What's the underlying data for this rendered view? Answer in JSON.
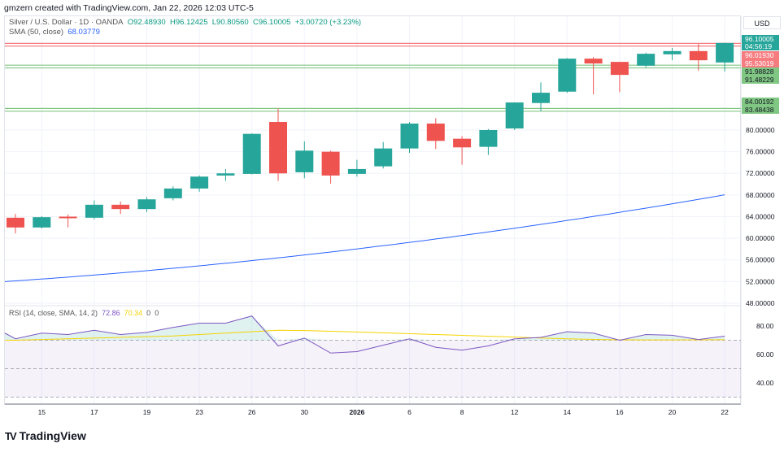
{
  "header": {
    "created_line": "gmzern created with TradingView.com, Jan 22, 2026 12:03 UTC-5",
    "symbol": "Silver / U.S. Dollar · 1D · OANDA",
    "open": "O92.48930",
    "high": "H96.12425",
    "low": "L90.80560",
    "close": "C96.10005",
    "change": "+3.00720 (+3.23%)",
    "sma_label": "SMA (50, close)",
    "sma_value": "68.03779",
    "currency": "USD"
  },
  "rsi_legend": {
    "label": "RSI (14, close, SMA, 14, 2)",
    "rsi": "72.86",
    "sma": "70.34",
    "extra1": "0",
    "extra2": "0"
  },
  "price_tags": [
    {
      "value": "96.10005",
      "sub": "04:56:19",
      "color": "#26a69a"
    },
    {
      "value": "96.01930",
      "color": "#f77c80"
    },
    {
      "value": "95.53019",
      "color": "#f77c80"
    },
    {
      "value": "91.98828",
      "color": "#81c784"
    },
    {
      "value": "91.48229",
      "color": "#81c784"
    },
    {
      "value": "84.00192",
      "color": "#81c784"
    },
    {
      "value": "83.48438",
      "color": "#81c784"
    }
  ],
  "brand": "TradingView",
  "colors": {
    "up": "#26a69a",
    "down": "#ef5350",
    "sma": "#2962ff",
    "rsi": "#7e57c2",
    "rsi_sma": "#f5d300"
  },
  "chart_data": {
    "type": "candlestick",
    "title": "Silver / U.S. Dollar · 1D · OANDA",
    "x_ticks": [
      "15",
      "17",
      "19",
      "23",
      "26",
      "30",
      "2026",
      "6",
      "8",
      "12",
      "14",
      "16",
      "20",
      "22"
    ],
    "x_tick_index": [
      1,
      3,
      5,
      7,
      9,
      11,
      13,
      15,
      17,
      19,
      21,
      23,
      25,
      27
    ],
    "y_ticks": [
      "80.00000",
      "76.00000",
      "72.00000",
      "68.00000",
      "64.00000",
      "60.00000",
      "56.00000",
      "52.00000",
      "48.00000"
    ],
    "ylim": [
      47.5,
      97
    ],
    "candles": [
      [
        63.8,
        64.5,
        60.9,
        62.0
      ],
      [
        62.0,
        64.1,
        61.8,
        63.9
      ],
      [
        64.0,
        64.4,
        62.0,
        63.7
      ],
      [
        63.8,
        67.0,
        63.5,
        66.2
      ],
      [
        66.2,
        66.8,
        64.5,
        65.4
      ],
      [
        65.4,
        67.6,
        64.8,
        67.2
      ],
      [
        67.4,
        69.6,
        67.0,
        69.2
      ],
      [
        69.2,
        71.6,
        68.6,
        71.4
      ],
      [
        71.6,
        72.8,
        70.6,
        72.0
      ],
      [
        71.9,
        79.4,
        71.8,
        79.3
      ],
      [
        81.5,
        84.0,
        70.6,
        72.0
      ],
      [
        72.2,
        77.9,
        71.1,
        76.2
      ],
      [
        76.0,
        76.2,
        70.1,
        71.6
      ],
      [
        71.9,
        74.5,
        71.4,
        72.8
      ],
      [
        73.3,
        77.8,
        72.9,
        76.6
      ],
      [
        76.6,
        81.5,
        75.8,
        81.2
      ],
      [
        81.2,
        82.2,
        76.5,
        78.0
      ],
      [
        78.4,
        78.9,
        73.6,
        76.8
      ],
      [
        76.9,
        80.2,
        75.4,
        80.0
      ],
      [
        80.3,
        85.1,
        80.0,
        85.1
      ],
      [
        85.0,
        88.8,
        83.5,
        86.9
      ],
      [
        87.1,
        93.3,
        86.9,
        93.2
      ],
      [
        93.2,
        93.5,
        86.6,
        92.3
      ],
      [
        92.6,
        92.6,
        87.0,
        90.2
      ],
      [
        91.9,
        94.3,
        91.6,
        94.1
      ],
      [
        94.0,
        95.2,
        92.9,
        94.6
      ],
      [
        94.6,
        95.9,
        91.0,
        92.9
      ],
      [
        92.4893,
        96.12425,
        90.8056,
        96.10005
      ]
    ],
    "sma50": {
      "start": 52.0,
      "end": 68.03779
    },
    "hlines": [
      {
        "value": 96.0193,
        "color": "#f77c80"
      },
      {
        "value": 95.53019,
        "color": "#f77c80"
      },
      {
        "value": 91.98828,
        "color": "#81c784"
      },
      {
        "value": 91.48229,
        "color": "#81c784"
      },
      {
        "value": 84.00192,
        "color": "#81c784"
      },
      {
        "value": 83.48438,
        "color": "#81c784"
      }
    ],
    "rsi": {
      "y_ticks": [
        "80.00",
        "60.00",
        "40.00"
      ],
      "levels": [
        70,
        50,
        30
      ],
      "values": [
        71,
        75,
        74,
        77,
        74,
        75.5,
        79,
        82,
        82,
        87,
        66,
        71.5,
        61,
        62,
        66.5,
        71,
        65,
        63,
        66,
        71,
        72,
        76,
        75,
        70,
        74,
        73.5,
        70.5,
        72.86
      ],
      "sma": [
        70,
        70.5,
        71,
        71.5,
        72,
        72.5,
        73,
        74,
        75,
        76,
        77,
        76.8,
        76.3,
        75.8,
        75.2,
        74.6,
        74,
        73.4,
        72.8,
        72.2,
        71.6,
        71,
        70.6,
        70.3,
        70.2,
        70.2,
        70.3,
        70.34
      ]
    }
  }
}
